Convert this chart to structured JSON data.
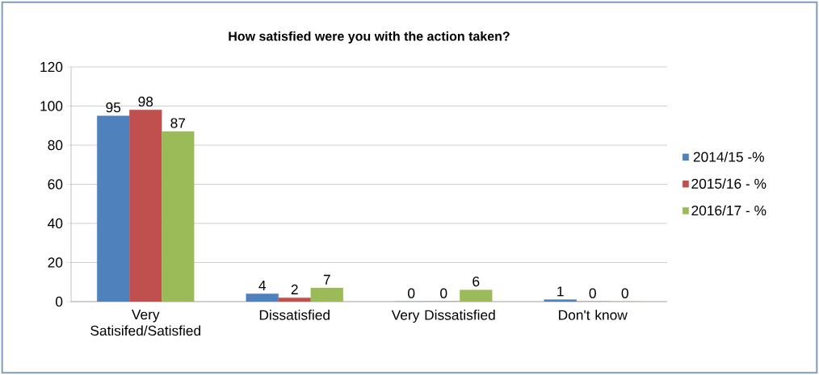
{
  "chart_data": {
    "type": "bar",
    "title": "How satisfied were you with the action taken?",
    "categories": [
      "Very Satisifed/Satisfied",
      "Dissatisfied",
      "Very Dissatisfied",
      "Don't know"
    ],
    "series": [
      {
        "name": "2014/15 -%",
        "color": "#4f81bd",
        "values": [
          95,
          4,
          0,
          1
        ]
      },
      {
        "name": "2015/16 - %",
        "color": "#c0504d",
        "values": [
          98,
          2,
          0,
          0
        ]
      },
      {
        "name": "2016/17 - %",
        "color": "#9bbb59",
        "values": [
          87,
          7,
          6,
          0
        ]
      }
    ],
    "ylim": [
      0,
      120
    ],
    "yticks": [
      0,
      20,
      40,
      60,
      80,
      100,
      120
    ],
    "grid": "y",
    "legend": "right",
    "data_labels": true
  }
}
